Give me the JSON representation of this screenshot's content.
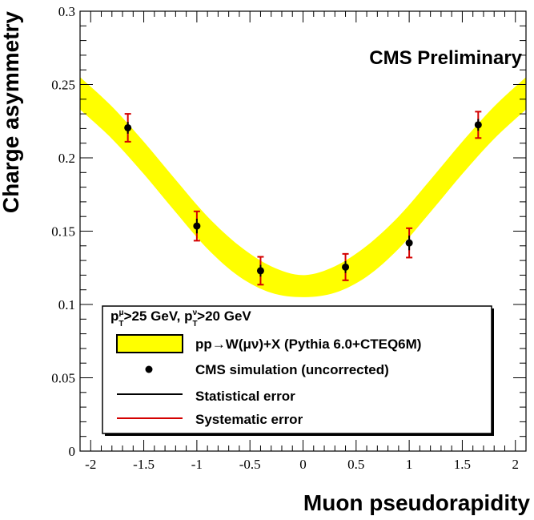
{
  "chart_data": {
    "type": "scatter",
    "title": "CMS Preliminary",
    "xlabel": "Muon pseudorapidity",
    "ylabel": "Charge asymmetry",
    "xlim": [
      -2.1,
      2.1
    ],
    "ylim": [
      0,
      0.3
    ],
    "xticks": [
      -2,
      -1.5,
      -1,
      -0.5,
      0,
      0.5,
      1,
      1.5,
      2
    ],
    "xtick_labels": [
      "-2",
      "-1.5",
      "-1",
      "-0.5",
      "0",
      "0.5",
      "1",
      "1.5",
      "2"
    ],
    "yticks": [
      0,
      0.05,
      0.1,
      0.15,
      0.2,
      0.25,
      0.3
    ],
    "ytick_labels": [
      "0",
      "0.05",
      "0.1",
      "0.15",
      "0.2",
      "0.25",
      "0.3"
    ],
    "band": {
      "name": "pp→W(μν)+X (Pythia 6.0+CTEQ6M)",
      "color": "#ffff00",
      "x": [
        -2.1,
        -1.8,
        -1.5,
        -1.2,
        -0.9,
        -0.6,
        -0.3,
        0.0,
        0.3,
        0.6,
        0.9,
        1.2,
        1.5,
        1.8,
        2.1
      ],
      "lower": [
        0.233,
        0.213,
        0.189,
        0.163,
        0.138,
        0.119,
        0.108,
        0.105,
        0.108,
        0.119,
        0.138,
        0.163,
        0.189,
        0.213,
        0.233
      ],
      "upper": [
        0.255,
        0.235,
        0.211,
        0.185,
        0.16,
        0.14,
        0.126,
        0.12,
        0.126,
        0.14,
        0.16,
        0.185,
        0.211,
        0.235,
        0.255
      ]
    },
    "points": {
      "name": "CMS simulation (uncorrected)",
      "x": [
        -1.65,
        -1.0,
        -0.4,
        0.4,
        1.0,
        1.65
      ],
      "y": [
        0.2205,
        0.1535,
        0.123,
        0.1255,
        0.142,
        0.2225
      ],
      "stat_err": [
        0.004,
        0.005,
        0.004,
        0.004,
        0.005,
        0.004
      ],
      "syst_err": [
        0.0095,
        0.01,
        0.0095,
        0.009,
        0.01,
        0.009
      ]
    },
    "legend": {
      "placement": "bottom-left",
      "header_prefix_1": "p",
      "header_sub_1": "T",
      "header_sup_1": "μ",
      "header_mid": ">25 GeV, p",
      "header_sub_2": "T",
      "header_sup_2": "ν",
      "header_suffix": ">20 GeV",
      "band_label": "pp→W(μν)+X (Pythia 6.0+CTEQ6M)",
      "points_label": "CMS simulation (uncorrected)",
      "stat_label": "Statistical error",
      "syst_label": "Systematic error",
      "stat_color": "#000000",
      "syst_color": "#d40000"
    }
  }
}
